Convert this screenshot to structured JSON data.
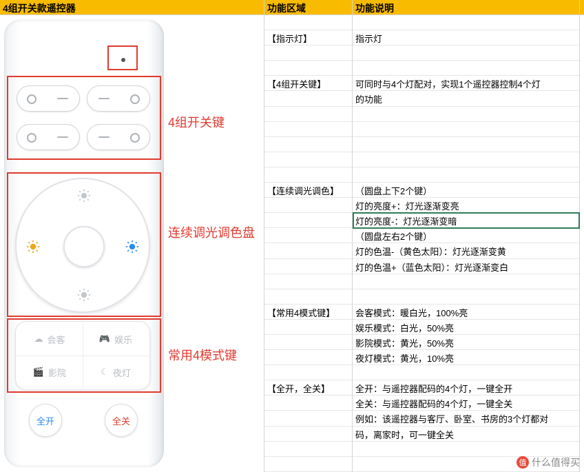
{
  "header": {
    "col1": "4组开关款遥控器",
    "col2": "功能区域",
    "col3": "功能说明",
    "bg_color": "#f8bb00"
  },
  "annotations": {
    "indicator_box": "指示灯",
    "switch_group": "4组开关键",
    "dial": "连续调光调色盘",
    "mode_block": "常用4模式键"
  },
  "remote": {
    "mode_tl": "会客",
    "mode_tr": "娱乐",
    "mode_bl": "影院",
    "mode_br": "夜灯",
    "all_on": "全开",
    "all_off": "全关",
    "colors": {
      "sun_warm": "#f2a516",
      "sun_cool": "#2b8bf0",
      "sun_gray": "#c2c7cc",
      "annotation": "#e03a2f",
      "on_text": "#2b8bf0",
      "off_text": "#e03a2f"
    }
  },
  "table": {
    "areas": [
      {
        "row": 1,
        "label": "【指示灯】"
      },
      {
        "row": 4,
        "label": "【4组开关键】"
      },
      {
        "row": 11,
        "label": "【连续调光调色】"
      },
      {
        "row": 19,
        "label": "【常用4模式键】"
      },
      {
        "row": 24,
        "label": "【全开，全关】"
      }
    ],
    "details": [
      {
        "row": 1,
        "text": "指示灯"
      },
      {
        "row": 4,
        "text": "可同时与4个灯配对，实现1个遥控器控制4个灯"
      },
      {
        "row": 5,
        "text": "的功能"
      },
      {
        "row": 11,
        "text": "（圆盘上下2个键）"
      },
      {
        "row": 12,
        "text": "灯的亮度+：灯光逐渐变亮"
      },
      {
        "row": 13,
        "text": "灯的亮度-：灯光逐渐变暗"
      },
      {
        "row": 14,
        "text": "（圆盘左右2个键）"
      },
      {
        "row": 15,
        "text": "灯的色温-（黄色太阳）：灯光逐渐变黄"
      },
      {
        "row": 16,
        "text": "灯的色温+（蓝色太阳）：灯光逐渐变白"
      },
      {
        "row": 19,
        "text": "会客模式：暖白光，100%亮"
      },
      {
        "row": 20,
        "text": "娱乐模式：白光，50%亮"
      },
      {
        "row": 21,
        "text": "影院模式：黄光，50%亮"
      },
      {
        "row": 22,
        "text": "夜灯模式：黄光，10%亮"
      },
      {
        "row": 24,
        "text": "全开：与遥控器配码的4个灯，一键全开"
      },
      {
        "row": 25,
        "text": "全关：与遥控器配码的4个灯，一键全关"
      },
      {
        "row": 26,
        "text": "例如：该遥控器与客厅、卧室、书房的3个灯都对"
      },
      {
        "row": 27,
        "text": "码，离家时，可一键全关"
      }
    ],
    "selected_cell_row": 13,
    "row_count": 30
  },
  "watermark": {
    "text": "什么值得买",
    "icon_text": "值"
  }
}
